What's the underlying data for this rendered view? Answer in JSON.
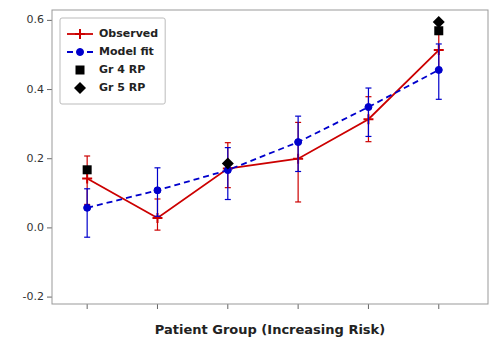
{
  "chart_data": {
    "type": "line",
    "xlabel": "Patient Group (Increasing Risk)",
    "series": [
      {
        "name": "Observed",
        "type": "line",
        "color": "#CC0000",
        "line_style": "solid",
        "marker": "plus",
        "x": [
          1,
          2,
          3,
          4,
          5,
          6
        ],
        "values": [
          0.1429,
          0.0286,
          0.1714,
          0.2,
          0.3143,
          0.5143
        ],
        "error_low": [
          0.075,
          0.035,
          0.055,
          0.125,
          0.065,
          0.055
        ],
        "error_high": [
          0.065,
          0.055,
          0.075,
          0.105,
          0.065,
          0.045
        ]
      },
      {
        "name": "Model fit",
        "type": "line",
        "color": "#0000CC",
        "line_style": "dashed",
        "marker": "circle",
        "x": [
          1,
          2,
          3,
          4,
          5,
          6
        ],
        "values": [
          0.0581,
          0.1087,
          0.1671,
          0.2481,
          0.3494,
          0.4568
        ],
        "error_low": [
          0.085,
          0.075,
          0.085,
          0.085,
          0.085,
          0.085
        ],
        "error_high": [
          0.055,
          0.065,
          0.065,
          0.075,
          0.055,
          0.075
        ]
      },
      {
        "name": "Gr 4 RP",
        "type": "scatter",
        "color": "#000000",
        "marker": "square",
        "x": [
          1,
          6
        ],
        "values": [
          0.168,
          0.57
        ]
      },
      {
        "name": "Gr 5 RP",
        "type": "scatter",
        "color": "#000000",
        "marker": "diamond",
        "x": [
          3,
          6
        ],
        "values": [
          0.186,
          0.595
        ]
      }
    ],
    "xlim": [
      0.5,
      6.7
    ],
    "xticks": [
      1,
      2,
      3,
      4,
      5,
      6
    ],
    "ylim": [
      -0.22,
      0.63
    ],
    "yticks": [
      -0.2,
      {
        "value": 0,
        "label": "0.0"
      },
      0.2,
      0.4,
      0.6
    ],
    "tick_labels": "y",
    "grid": false,
    "legend": "upper left"
  }
}
